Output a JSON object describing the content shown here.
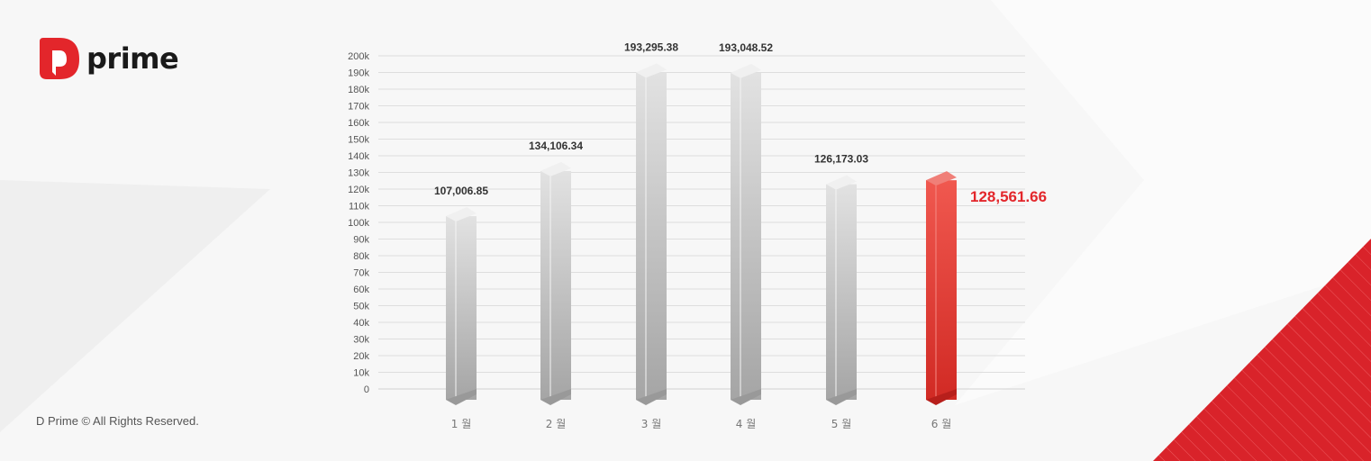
{
  "brand": {
    "name": "prime",
    "color": "#e3262b"
  },
  "footer": {
    "copyright": "D Prime © All Rights Reserved."
  },
  "chart_data": {
    "type": "bar",
    "categories": [
      "1 월",
      "2 월",
      "3 월",
      "4 월",
      "5 월",
      "6 월"
    ],
    "values": [
      107006.85,
      134106.34,
      193295.38,
      193048.52,
      126173.03,
      128561.66
    ],
    "labels": [
      "107,006.85",
      "134,106.34",
      "193,295.38",
      "193,048.52",
      "126,173.03",
      "128,561.66"
    ],
    "ylim": [
      0,
      200000
    ],
    "yticks": [
      "0",
      "10k",
      "20k",
      "30k",
      "40k",
      "50k",
      "60k",
      "70k",
      "80k",
      "90k",
      "100k",
      "110k",
      "120k",
      "130k",
      "140k",
      "150k",
      "160k",
      "170k",
      "180k",
      "190k",
      "200k"
    ],
    "grid": true,
    "bar_color": "#c8c8c8",
    "highlight_index": 5,
    "highlight_color": "#e3262b"
  }
}
